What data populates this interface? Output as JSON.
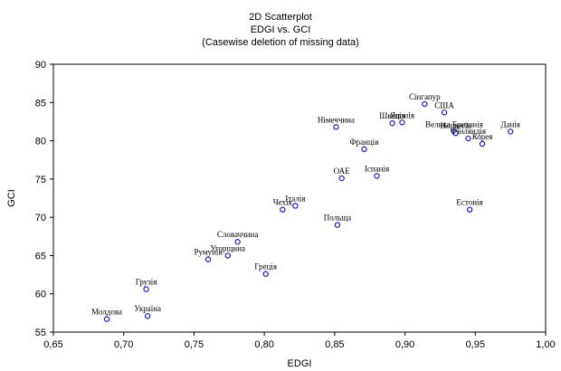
{
  "chart_data": {
    "type": "scatter",
    "title": "2D Scatterplot",
    "subtitle": "EDGI vs. GCI",
    "note": "(Casewise deletion of missing data)",
    "xlabel": "EDGI",
    "ylabel": "GCI",
    "xlim": [
      0.65,
      1.0
    ],
    "ylim": [
      55,
      90
    ],
    "xticks": [
      "0,65",
      "0,70",
      "0,75",
      "0,80",
      "0,85",
      "0,90",
      "0,95",
      "1,00"
    ],
    "yticks": [
      "55",
      "60",
      "65",
      "70",
      "75",
      "80",
      "85",
      "90"
    ],
    "grid": false,
    "marker_color": "#1a1acc",
    "points": [
      {
        "label": "Молдова",
        "x": 0.688,
        "y": 56.7
      },
      {
        "label": "Україна",
        "x": 0.717,
        "y": 57.1
      },
      {
        "label": "Грузія",
        "x": 0.716,
        "y": 60.6
      },
      {
        "label": "Румунія",
        "x": 0.76,
        "y": 64.5
      },
      {
        "label": "Угорщина",
        "x": 0.774,
        "y": 65.0
      },
      {
        "label": "Словаччина",
        "x": 0.781,
        "y": 66.8
      },
      {
        "label": "Греція",
        "x": 0.801,
        "y": 62.6
      },
      {
        "label": "Чехія",
        "x": 0.813,
        "y": 71.0
      },
      {
        "label": "Італія",
        "x": 0.822,
        "y": 71.5
      },
      {
        "label": "Польща",
        "x": 0.852,
        "y": 69.0
      },
      {
        "label": "ОАЕ",
        "x": 0.855,
        "y": 75.1
      },
      {
        "label": "Іспанія",
        "x": 0.88,
        "y": 75.4
      },
      {
        "label": "Франція",
        "x": 0.871,
        "y": 78.9
      },
      {
        "label": "Німеччина",
        "x": 0.851,
        "y": 81.8
      },
      {
        "label": "Швеція",
        "x": 0.891,
        "y": 82.3
      },
      {
        "label": "Японія",
        "x": 0.898,
        "y": 82.4
      },
      {
        "label": "Сінгапур",
        "x": 0.914,
        "y": 84.8
      },
      {
        "label": "США",
        "x": 0.928,
        "y": 83.7
      },
      {
        "label": "Велика Британія",
        "x": 0.935,
        "y": 81.2
      },
      {
        "label": "Норвегія",
        "x": 0.936,
        "y": 81.0
      },
      {
        "label": "Фінляндія",
        "x": 0.945,
        "y": 80.3
      },
      {
        "label": "Корея",
        "x": 0.955,
        "y": 79.6
      },
      {
        "label": "Данія",
        "x": 0.975,
        "y": 81.2
      },
      {
        "label": "Естонія",
        "x": 0.946,
        "y": 71.0
      }
    ]
  }
}
